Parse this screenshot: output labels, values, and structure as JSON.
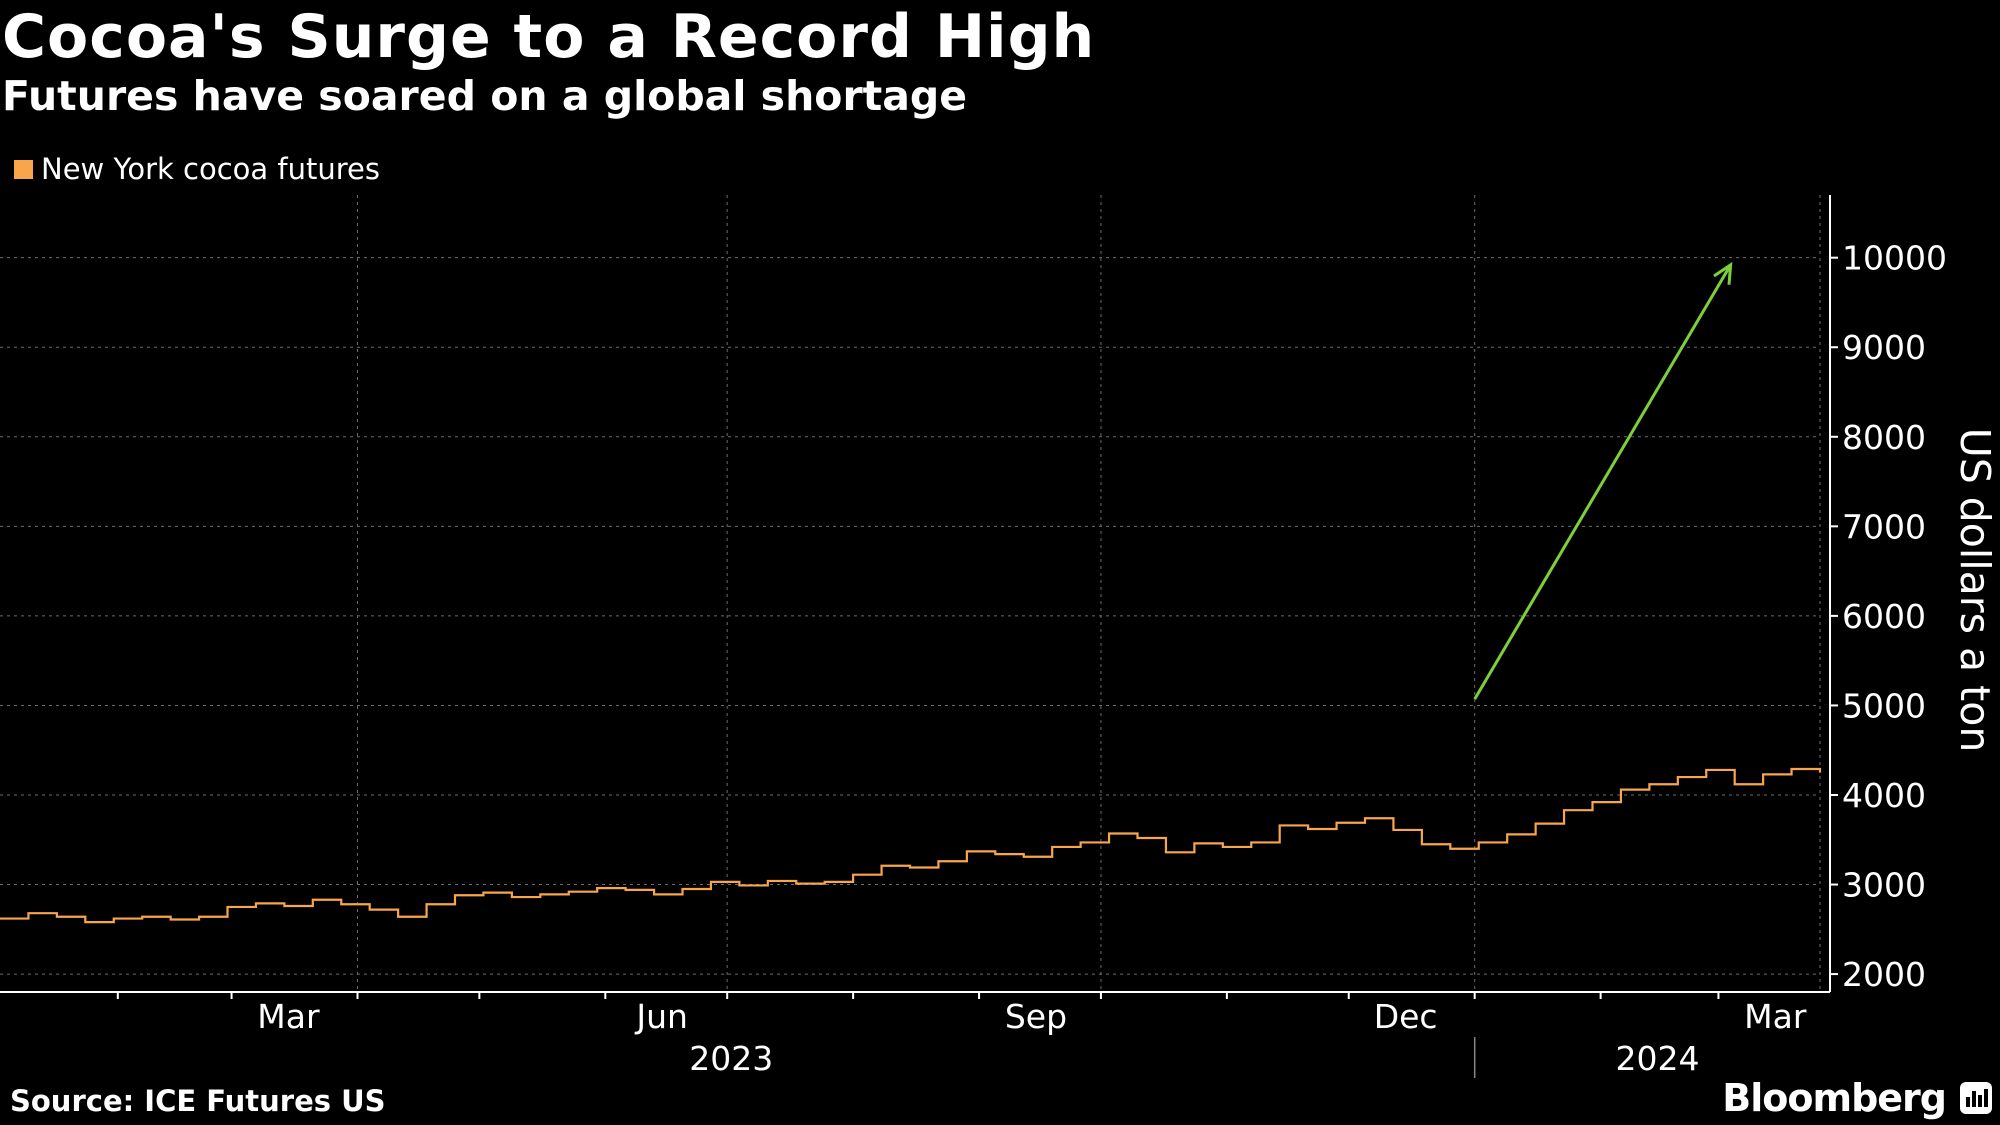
{
  "title": "Cocoa's Surge to a Record High",
  "subtitle": "Futures have soared on a global shortage",
  "source": "Source: ICE Futures US",
  "brand": "Bloomberg",
  "colors": {
    "background": "#000000",
    "series": "#f9a54c",
    "arrow": "#7dd03a",
    "grid": "#6b6b6b",
    "text": "#ffffff"
  },
  "chart_data": {
    "type": "line",
    "title": "Cocoa's Surge to a Record High",
    "subtitle": "Futures have soared on a global shortage",
    "xlabel": "",
    "ylabel": "US dollars a ton",
    "y_axis_side": "right",
    "ylim": [
      1800,
      10700
    ],
    "yticks": [
      2000,
      3000,
      4000,
      5000,
      6000,
      7000,
      8000,
      9000,
      10000
    ],
    "xlim": [
      "2023-01-03",
      "2024-03-26"
    ],
    "month_ticks": [
      "2023-01-01",
      "2023-02-01",
      "2023-03-01",
      "2023-04-01",
      "2023-05-01",
      "2023-06-01",
      "2023-07-01",
      "2023-08-01",
      "2023-09-01",
      "2023-10-01",
      "2023-11-01",
      "2023-12-01",
      "2024-01-01",
      "2024-02-01",
      "2024-03-01"
    ],
    "month_labels": [
      {
        "label": "Mar",
        "date": "2023-03-15"
      },
      {
        "label": "Jun",
        "date": "2023-06-15"
      },
      {
        "label": "Sep",
        "date": "2023-09-15"
      },
      {
        "label": "Dec",
        "date": "2023-12-15"
      },
      {
        "label": "Mar",
        "date": "2024-03-15"
      }
    ],
    "year_labels": [
      {
        "label": "2023",
        "date": "2023-07-02"
      },
      {
        "label": "2024",
        "date": "2024-02-15"
      }
    ],
    "year_divider": "2024-01-01",
    "grid": true,
    "legend": "top-left",
    "series": [
      {
        "name": "New York cocoa futures",
        "color": "#f9a54c",
        "points": [
          [
            "2023-01-03",
            2620
          ],
          [
            "2023-01-10",
            2680
          ],
          [
            "2023-01-17",
            2640
          ],
          [
            "2023-01-24",
            2580
          ],
          [
            "2023-01-31",
            2620
          ],
          [
            "2023-02-07",
            2640
          ],
          [
            "2023-02-14",
            2610
          ],
          [
            "2023-02-21",
            2640
          ],
          [
            "2023-02-28",
            2750
          ],
          [
            "2023-03-07",
            2790
          ],
          [
            "2023-03-14",
            2760
          ],
          [
            "2023-03-21",
            2830
          ],
          [
            "2023-03-28",
            2780
          ],
          [
            "2023-04-04",
            2720
          ],
          [
            "2023-04-11",
            2640
          ],
          [
            "2023-04-18",
            2780
          ],
          [
            "2023-04-25",
            2880
          ],
          [
            "2023-05-02",
            2910
          ],
          [
            "2023-05-09",
            2860
          ],
          [
            "2023-05-16",
            2890
          ],
          [
            "2023-05-23",
            2920
          ],
          [
            "2023-05-30",
            2960
          ],
          [
            "2023-06-06",
            2940
          ],
          [
            "2023-06-13",
            2890
          ],
          [
            "2023-06-20",
            2950
          ],
          [
            "2023-06-27",
            3030
          ],
          [
            "2023-07-04",
            2990
          ],
          [
            "2023-07-11",
            3040
          ],
          [
            "2023-07-18",
            3010
          ],
          [
            "2023-07-25",
            3030
          ],
          [
            "2023-08-01",
            3110
          ],
          [
            "2023-08-08",
            3210
          ],
          [
            "2023-08-15",
            3190
          ],
          [
            "2023-08-22",
            3260
          ],
          [
            "2023-08-29",
            3370
          ],
          [
            "2023-09-05",
            3340
          ],
          [
            "2023-09-12",
            3310
          ],
          [
            "2023-09-19",
            3420
          ],
          [
            "2023-09-26",
            3470
          ],
          [
            "2023-10-03",
            3570
          ],
          [
            "2023-10-10",
            3520
          ],
          [
            "2023-10-17",
            3360
          ],
          [
            "2023-10-24",
            3460
          ],
          [
            "2023-10-31",
            3420
          ],
          [
            "2023-11-07",
            3470
          ],
          [
            "2023-11-14",
            3660
          ],
          [
            "2023-11-21",
            3620
          ],
          [
            "2023-11-28",
            3690
          ],
          [
            "2023-12-05",
            3740
          ],
          [
            "2023-12-12",
            3610
          ],
          [
            "2023-12-19",
            3450
          ],
          [
            "2023-12-26",
            3400
          ],
          [
            "2024-01-02",
            3470
          ],
          [
            "2024-01-09",
            3560
          ],
          [
            "2024-01-16",
            3680
          ],
          [
            "2024-01-23",
            3830
          ],
          [
            "2024-01-30",
            3920
          ],
          [
            "2024-02-06",
            4060
          ],
          [
            "2024-02-13",
            4120
          ],
          [
            "2024-02-20",
            4200
          ],
          [
            "2024-02-27",
            4280
          ],
          [
            "2024-03-05",
            4120
          ],
          [
            "2024-03-12",
            4230
          ],
          [
            "2024-03-19",
            4290
          ],
          [
            "2024-03-26",
            4250
          ]
        ]
      }
    ],
    "series_rescaled_note": "",
    "arrow": {
      "from": [
        "2024-01-01",
        5070
      ],
      "to": [
        "2024-03-04",
        9920
      ]
    }
  }
}
